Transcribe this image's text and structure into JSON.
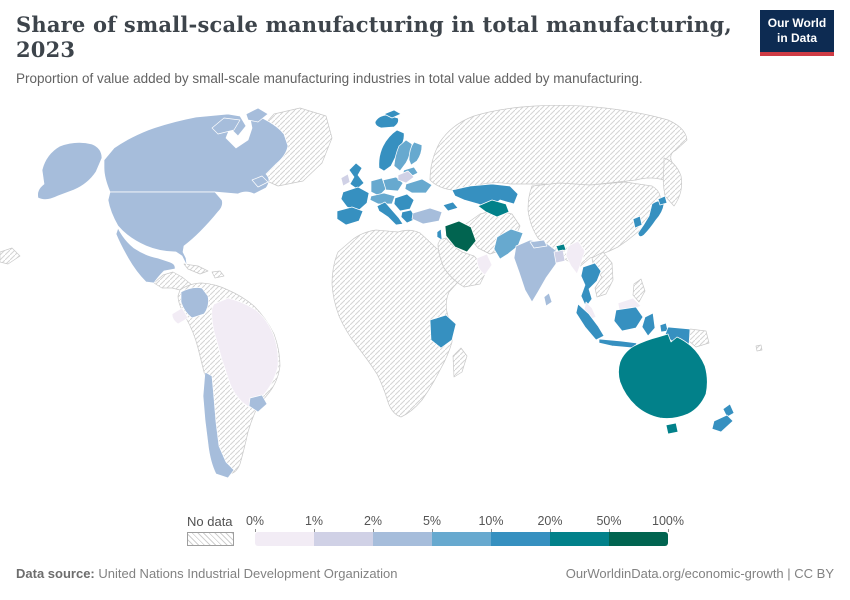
{
  "header": {
    "title": "Share of small-scale manufacturing in total manufacturing, 2023",
    "subtitle": "Proportion of value added by small-scale manufacturing industries in total value added by manufacturing."
  },
  "logo": {
    "line1": "Our World",
    "line2": "in Data",
    "bg_color": "#0d2b52",
    "accent_color": "#cf3b44"
  },
  "legend": {
    "no_data_label": "No data",
    "tick_labels": [
      "0%",
      "1%",
      "2%",
      "5%",
      "10%",
      "20%",
      "50%",
      "100%"
    ],
    "colors": [
      "#f2ecf5",
      "#d0d1e6",
      "#a6bddb",
      "#67a9cf",
      "#3690c0",
      "#02818a",
      "#016450"
    ]
  },
  "footer": {
    "source_label": "Data source:",
    "source_value": " United Nations Industrial Development Organization",
    "right_text": "OurWorldinData.org/economic-growth | CC BY"
  },
  "map": {
    "nodata_border": "#c9c9c9",
    "country_border": "#ffffff",
    "region_fills": {
      "greenland": "nodata",
      "alaska": "#a6bddb",
      "canada": "#a6bddb",
      "usa": "#a6bddb",
      "mexico": "#a6bddb",
      "central-america": "nodata",
      "cuba": "nodata",
      "hispaniola": "nodata",
      "south-america-other": "nodata",
      "colombia": "#a6bddb",
      "ecuador": "#f2ecf5",
      "brazil": "#f2ecf5",
      "chile": "#a6bddb",
      "uruguay": "#a6bddb",
      "iceland": "#3690c0",
      "svalbard": "#3690c0",
      "norway": "#3690c0",
      "sweden": "#67a9cf",
      "finland": "#67a9cf",
      "baltics": "#67a9cf",
      "uk": "#3690c0",
      "ireland": "#d0d1e6",
      "france": "#3690c0",
      "iberia": "#3690c0",
      "germany": "#67a9cf",
      "central-europe": "#67a9cf",
      "poland": "#67a9cf",
      "belarus": "#d0d1e6",
      "ukraine": "#67a9cf",
      "italy": "#3690c0",
      "balkans": "#3690c0",
      "greece": "#3690c0",
      "turkey": "#a6bddb",
      "caucasus": "#3690c0",
      "russia": "nodata",
      "kamchatka": "nodata",
      "chukotka-west": "nodata",
      "china-mongolia": "nodata",
      "kazakhstan": "#3690c0",
      "uzbekistan": "#02818a",
      "iran-region": "nodata",
      "iraq": "#016450",
      "israel": "#3690c0",
      "arabia": "nodata",
      "oman": "#f2ecf5",
      "africa": "nodata",
      "madagascar": "nodata",
      "tanzania": "#3690c0",
      "pakistan": "#67a9cf",
      "india": "#a6bddb",
      "nepal": "#a6bddb",
      "bangladesh": "#d0d1e6",
      "bhutan": "#02818a",
      "sri-lanka": "#a6bddb",
      "myanmar": "#f2ecf5",
      "thailand": "#3690c0",
      "indochina": "nodata",
      "malaysia": "#f2ecf5",
      "borneo-malaysia": "#f2ecf5",
      "indonesia": "#3690c0",
      "philippines": "nodata",
      "png": "nodata",
      "japan": "#3690c0",
      "south-korea": "#3690c0",
      "australia": "#02818a",
      "tasmania": "#02818a",
      "new-zealand": "#3690c0",
      "fiji": "nodata"
    }
  },
  "chart_data": {
    "type": "heatmap",
    "map_type": "world-choropleth",
    "title": "Share of small-scale manufacturing in total manufacturing, 2023",
    "unit": "%",
    "legend_position": "bottom",
    "color_scale": {
      "bins": [
        {
          "range": "0-1%",
          "color": "#f2ecf5"
        },
        {
          "range": "1-2%",
          "color": "#d0d1e6"
        },
        {
          "range": "2-5%",
          "color": "#a6bddb"
        },
        {
          "range": "5-10%",
          "color": "#67a9cf"
        },
        {
          "range": "10-20%",
          "color": "#3690c0"
        },
        {
          "range": "20-50%",
          "color": "#02818a"
        },
        {
          "range": "50-100%",
          "color": "#016450"
        }
      ],
      "no_data": {
        "label": "No data",
        "pattern": "diagonal-hatch"
      }
    },
    "countries_by_bin": {
      "0-1%": [
        "Brazil",
        "Ecuador",
        "Myanmar",
        "Malaysia",
        "Oman"
      ],
      "1-2%": [
        "Ireland",
        "Belarus",
        "Bangladesh"
      ],
      "2-5%": [
        "United States",
        "Canada",
        "Mexico",
        "Colombia",
        "Chile",
        "Uruguay",
        "Turkey",
        "India",
        "Nepal",
        "Sri Lanka"
      ],
      "5-10%": [
        "Germany",
        "Sweden",
        "Finland",
        "Poland",
        "Central Europe",
        "Baltic states",
        "Ukraine",
        "Pakistan"
      ],
      "10-20%": [
        "Iceland",
        "Norway",
        "United Kingdom",
        "France",
        "Spain",
        "Portugal",
        "Italy",
        "Balkans",
        "Greece",
        "Caucasus",
        "Kazakhstan",
        "Israel",
        "Tanzania",
        "Thailand",
        "Indonesia",
        "Japan",
        "South Korea",
        "New Zealand"
      ],
      "20-50%": [
        "Australia",
        "Uzbekistan",
        "Bhutan"
      ],
      "50-100%": [
        "Iraq"
      ]
    },
    "no_data_countries": [
      "Russia",
      "China",
      "Mongolia",
      "Iran",
      "Afghanistan",
      "Turkmenistan",
      "Saudi Arabia",
      "Yemen",
      "Syria",
      "most of Africa",
      "Madagascar",
      "Vietnam",
      "Laos",
      "Cambodia",
      "Philippines",
      "Papua New Guinea",
      "Greenland",
      "Central America",
      "Cuba",
      "Venezuela",
      "Peru",
      "Bolivia",
      "Argentina",
      "Paraguay",
      "Fiji"
    ]
  }
}
